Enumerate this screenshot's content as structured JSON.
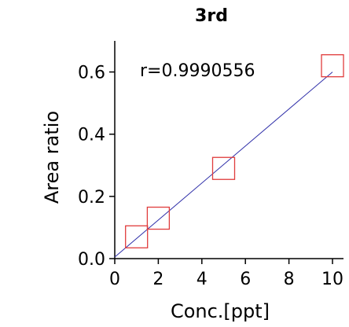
{
  "chart_data": {
    "type": "scatter",
    "title": "3rd",
    "xlabel": "Conc.[ppt]",
    "ylabel": "Area ratio",
    "xlim": [
      0,
      10
    ],
    "ylim": [
      0,
      0.7
    ],
    "xticks": [
      0,
      2,
      4,
      6,
      8,
      10
    ],
    "xtick_labels": [
      "0",
      "2",
      "4",
      "6",
      "8",
      "10"
    ],
    "yticks": [
      0.0,
      0.2,
      0.4,
      0.6
    ],
    "ytick_labels": [
      "0.0",
      "0.2",
      "0.4",
      "0.6"
    ],
    "annotation": "r=0.9990556",
    "grid": false,
    "series": [
      {
        "type": "scatter",
        "marker": "open-square",
        "color": "#e03c3c",
        "x": [
          1,
          2,
          5,
          10
        ],
        "y": [
          0.07,
          0.13,
          0.29,
          0.62
        ]
      }
    ],
    "fit_line": {
      "color": "#2e2ea8",
      "x": [
        0,
        10
      ],
      "y": [
        0.005,
        0.6
      ]
    }
  }
}
